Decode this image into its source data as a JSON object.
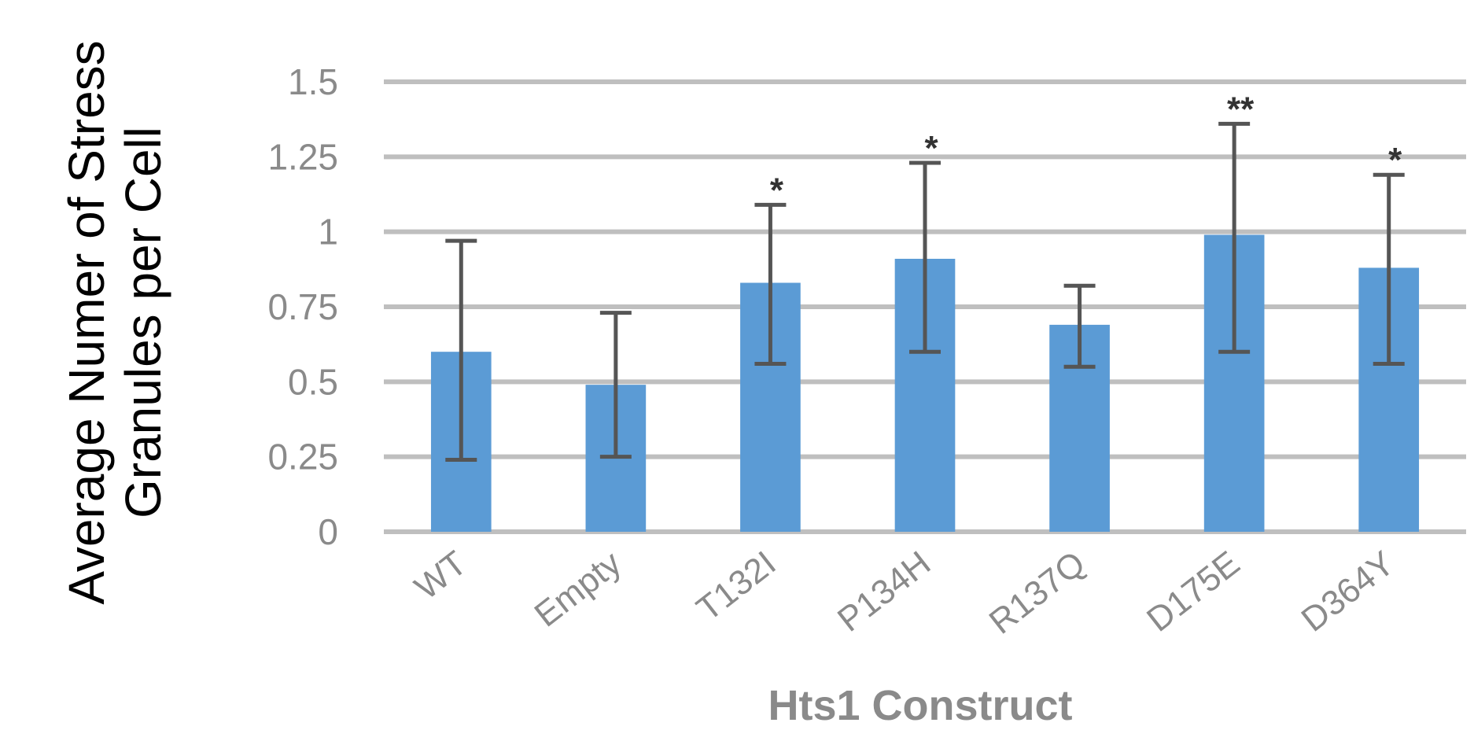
{
  "chart_data": {
    "type": "bar",
    "categories": [
      "WT",
      "Empty",
      "T132I",
      "P134H",
      "R137Q",
      "D175E",
      "D364Y"
    ],
    "values": [
      0.6,
      0.49,
      0.83,
      0.91,
      0.69,
      0.99,
      0.88
    ],
    "error_upper": [
      0.97,
      0.73,
      1.09,
      1.23,
      0.82,
      1.36,
      1.19
    ],
    "error_lower": [
      0.24,
      0.25,
      0.56,
      0.6,
      0.55,
      0.6,
      0.56
    ],
    "significance": [
      "",
      "",
      "*",
      "*",
      "",
      "**",
      "*"
    ],
    "yticks": [
      "0",
      "0.25",
      "0.5",
      "0.75",
      "1",
      "1.25",
      "1.5"
    ],
    "ylim": [
      0,
      1.5
    ],
    "xlabel": "Hts1 Construct",
    "ylabel_lines": [
      "Average Numer of Stress",
      "Granules per Cell"
    ],
    "grid": true,
    "bar_color": "#5b9bd5",
    "grid_color": "#bfbfbf",
    "error_color": "#555555"
  }
}
